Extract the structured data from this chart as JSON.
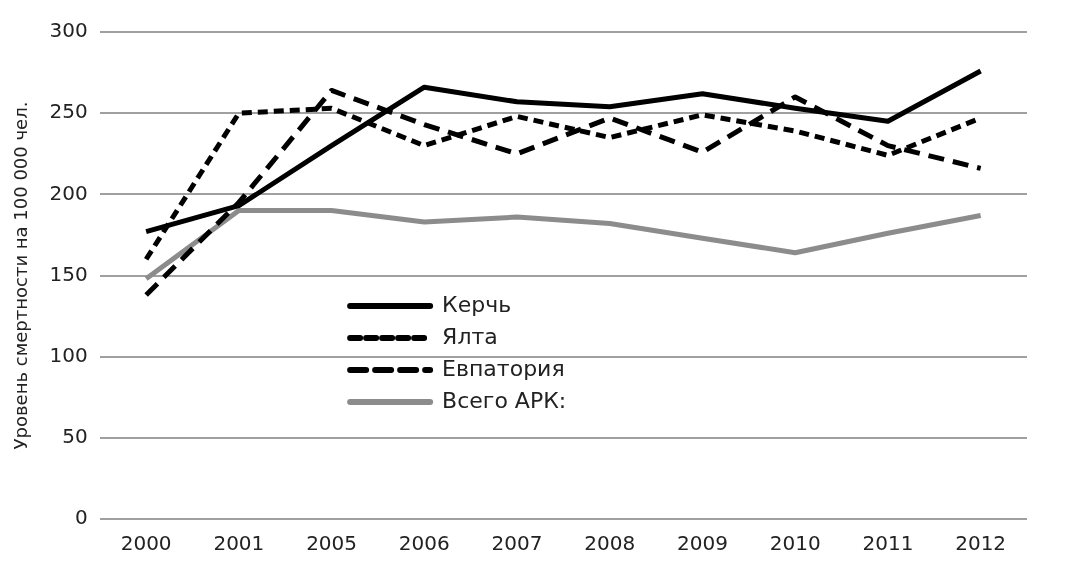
{
  "chart_data": {
    "type": "line",
    "ylabel": "Уровень смертности на 100 000 чел.",
    "categories": [
      "2000",
      "2001",
      "2005",
      "2006",
      "2007",
      "2008",
      "2009",
      "2010",
      "2011",
      "2012"
    ],
    "series": [
      {
        "name": "Керчь",
        "color": "#000000",
        "line_style": "solid",
        "values": [
          177,
          193,
          230,
          266,
          257,
          254,
          262,
          253,
          245,
          276
        ]
      },
      {
        "name": "Ялта",
        "color": "#000000",
        "line_style": "dashed",
        "values": [
          160,
          250,
          253,
          230,
          248,
          235,
          249,
          239,
          224,
          247
        ]
      },
      {
        "name": "Евпатория",
        "color": "#000000",
        "line_style": "dashed",
        "values": [
          138,
          195,
          264,
          243,
          225,
          247,
          226,
          260,
          230,
          216
        ]
      },
      {
        "name": "Всего АРК:",
        "color": "#8c8c8c",
        "line_style": "solid",
        "values": [
          148,
          190,
          190,
          183,
          186,
          182,
          173,
          164,
          176,
          187
        ]
      }
    ],
    "ylim": [
      0,
      300
    ],
    "yticks": [
      0,
      50,
      100,
      150,
      200,
      250,
      300
    ],
    "grid": "y",
    "legend": "center left",
    "marker": "none"
  }
}
